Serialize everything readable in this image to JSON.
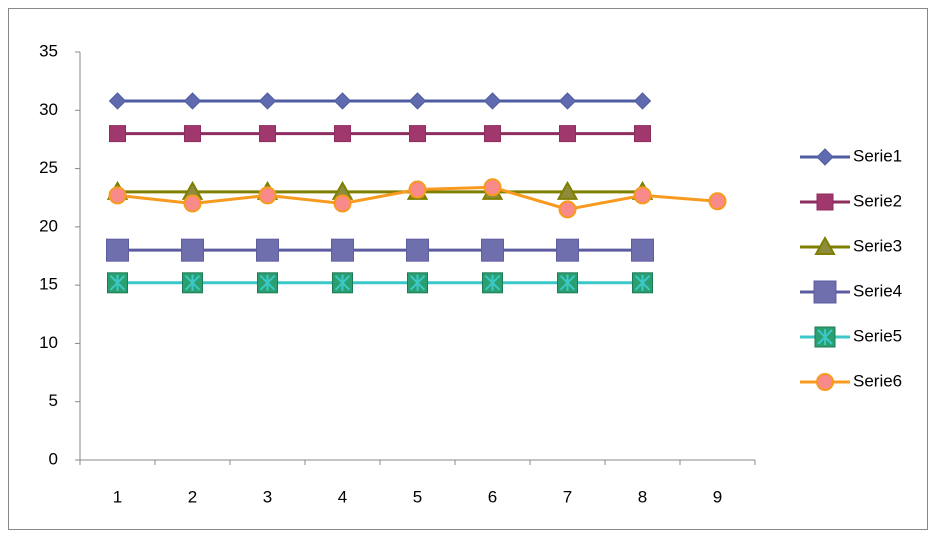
{
  "chart_data": {
    "type": "line",
    "categories": [
      "1",
      "2",
      "3",
      "4",
      "5",
      "6",
      "7",
      "8",
      "9"
    ],
    "ylim": [
      0,
      35
    ],
    "yticks": [
      0,
      5,
      10,
      15,
      20,
      25,
      30,
      35
    ],
    "grid": false,
    "legend": "right",
    "series": [
      {
        "name": "Serie1",
        "color": "#4F5DA0",
        "marker_color": "#5F6BAE",
        "marker": "diamond",
        "values": [
          30.8,
          30.8,
          30.8,
          30.8,
          30.8,
          30.8,
          30.8,
          30.8,
          null
        ]
      },
      {
        "name": "Serie2",
        "color": "#8E2D5F",
        "marker_color": "#A0386E",
        "marker": "square",
        "values": [
          28,
          28,
          28,
          28,
          28,
          28,
          28,
          28,
          null
        ]
      },
      {
        "name": "Serie3",
        "color": "#7F7F00",
        "marker_color": "#8C8C3C",
        "marker": "triangle",
        "values": [
          23,
          23,
          23,
          23,
          23,
          23,
          23,
          23,
          null
        ]
      },
      {
        "name": "Serie4",
        "color": "#5E5CA0",
        "marker_color": "#6F6FAE",
        "marker": "bigsquare",
        "values": [
          18,
          18,
          18,
          18,
          18,
          18,
          18,
          18,
          null
        ]
      },
      {
        "name": "Serie5",
        "color": "#3CC8C8",
        "marker_color": "#2AA070",
        "marker": "star",
        "values": [
          15.2,
          15.2,
          15.2,
          15.2,
          15.2,
          15.2,
          15.2,
          15.2,
          null
        ]
      },
      {
        "name": "Serie6",
        "color": "#F79A1E",
        "marker_color": "#F88A8A",
        "marker": "circle",
        "values": [
          22.7,
          22.0,
          22.7,
          22.0,
          23.2,
          23.4,
          21.5,
          22.7,
          22.2
        ]
      }
    ]
  }
}
